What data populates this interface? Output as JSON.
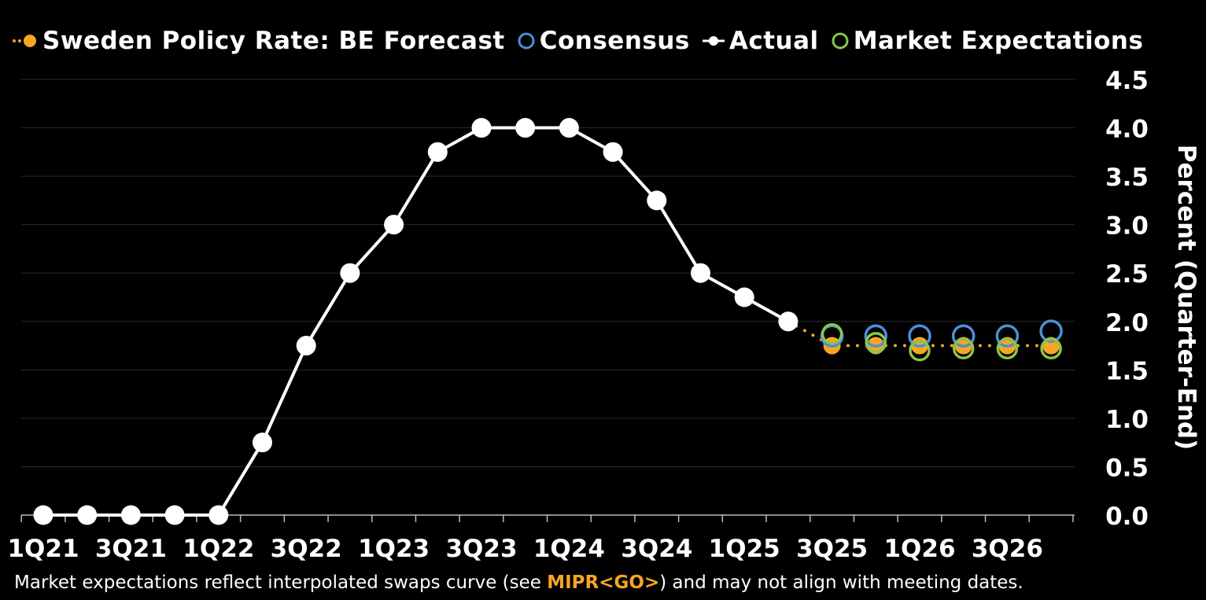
{
  "chart_data": {
    "type": "line",
    "legend_position": "top",
    "categories": [
      "1Q21",
      "2Q21",
      "3Q21",
      "4Q21",
      "1Q22",
      "2Q22",
      "3Q22",
      "4Q22",
      "1Q23",
      "2Q23",
      "3Q23",
      "4Q23",
      "1Q24",
      "2Q24",
      "3Q24",
      "4Q24",
      "1Q25",
      "2Q25",
      "3Q25",
      "4Q25",
      "1Q26",
      "2Q26",
      "3Q26",
      "4Q26"
    ],
    "x_tick_labels": [
      "1Q21",
      "3Q21",
      "1Q22",
      "3Q22",
      "1Q23",
      "3Q23",
      "1Q24",
      "3Q24",
      "1Q25",
      "3Q25",
      "1Q26",
      "3Q26"
    ],
    "y_ticks": [
      "0.0",
      "0.5",
      "1.0",
      "1.5",
      "2.0",
      "2.5",
      "3.0",
      "3.5",
      "4.0",
      "4.5"
    ],
    "ylim": [
      0,
      4.5
    ],
    "ylabel": "Percent (Quarter-End)",
    "grid": true,
    "series": [
      {
        "name": "Sweden Policy Rate: BE Forecast",
        "color": "#f5a623",
        "style": "dotted-filled-dot",
        "values": [
          null,
          null,
          null,
          null,
          null,
          null,
          null,
          null,
          null,
          null,
          null,
          null,
          null,
          null,
          null,
          null,
          null,
          2.0,
          1.75,
          1.75,
          1.75,
          1.75,
          1.75,
          1.75
        ]
      },
      {
        "name": "Consensus",
        "color": "#4a90d9",
        "style": "hollow-circle",
        "values": [
          null,
          null,
          null,
          null,
          null,
          null,
          null,
          null,
          null,
          null,
          null,
          null,
          null,
          null,
          null,
          null,
          null,
          null,
          1.85,
          1.85,
          1.85,
          1.85,
          1.85,
          1.9
        ]
      },
      {
        "name": "Actual",
        "color": "#ffffff",
        "style": "line-filled-dot",
        "values": [
          0,
          0,
          0,
          0,
          0,
          0.75,
          1.75,
          2.5,
          3.0,
          3.75,
          4.0,
          4.0,
          4.0,
          3.75,
          3.25,
          2.5,
          2.25,
          2.0,
          null,
          null,
          null,
          null,
          null,
          null
        ]
      },
      {
        "name": "Market Expectations",
        "color": "#8bc34a",
        "style": "hollow-circle",
        "values": [
          null,
          null,
          null,
          null,
          null,
          null,
          null,
          null,
          null,
          null,
          null,
          null,
          null,
          null,
          null,
          null,
          null,
          null,
          1.87,
          1.78,
          1.7,
          1.72,
          1.72,
          1.72
        ]
      }
    ]
  },
  "legend": {
    "forecast": "Sweden Policy Rate: BE Forecast",
    "consensus": "Consensus",
    "actual": "Actual",
    "market": "Market Expectations"
  },
  "footnote": {
    "before": "Market expectations reflect interpolated swaps curve (see ",
    "highlight": "MIPR<GO>",
    "after": ") and may not align with meeting dates."
  }
}
